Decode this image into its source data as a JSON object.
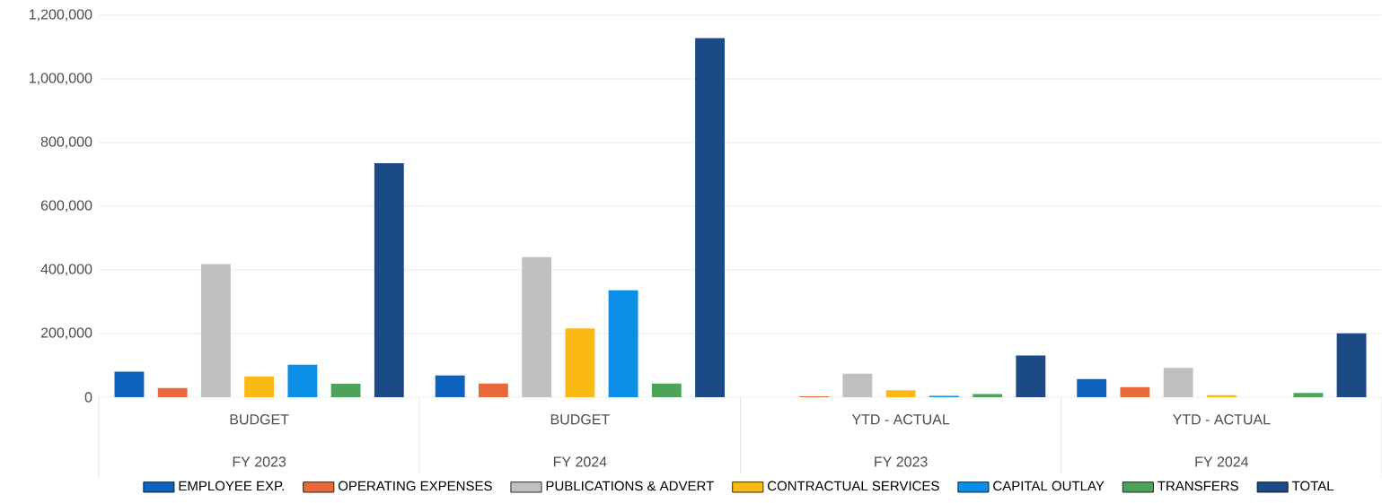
{
  "chart_data": {
    "type": "bar",
    "categories": [
      "BUDGET",
      "BUDGET",
      "YTD - ACTUAL",
      "YTD - ACTUAL"
    ],
    "annotations": [
      "FY 2023",
      "FY 2024",
      "FY 2023",
      "FY 2024"
    ],
    "series": [
      {
        "name": "EMPLOYEE EXP.",
        "color": "#0f63c0",
        "values": [
          80000,
          68000,
          0,
          57000
        ]
      },
      {
        "name": "OPERATING EXPENSES",
        "color": "#e8693c",
        "values": [
          29000,
          43000,
          3000,
          32000
        ]
      },
      {
        "name": "PUBLICATIONS & ADVERT",
        "color": "#c0c0c0",
        "values": [
          418000,
          440000,
          74000,
          92000
        ]
      },
      {
        "name": "CONTRACTUAL SERVICES",
        "color": "#fbb914",
        "values": [
          65000,
          216000,
          22000,
          6000
        ]
      },
      {
        "name": "CAPITAL OUTLAY",
        "color": "#0a8ee6",
        "values": [
          102000,
          336000,
          4000,
          0
        ]
      },
      {
        "name": "TRANSFERS",
        "color": "#4ea35a",
        "values": [
          42000,
          43000,
          10000,
          13000
        ]
      },
      {
        "name": "TOTAL",
        "color": "#1b4a87",
        "values": [
          735000,
          1128000,
          131000,
          201000
        ]
      }
    ],
    "ylim": [
      0,
      1200000
    ],
    "yticks": [
      0,
      {
        "value": 200000,
        "label": "200,000"
      },
      {
        "value": 400000,
        "label": "400,000"
      },
      {
        "value": 600000,
        "label": "600,000"
      },
      {
        "value": 800000,
        "label": "800,000"
      },
      {
        "value": 1000000,
        "label": "1,000,000"
      },
      {
        "value": 1200000,
        "label": "1,200,000"
      }
    ],
    "grid": "y",
    "legend": "bottom"
  }
}
